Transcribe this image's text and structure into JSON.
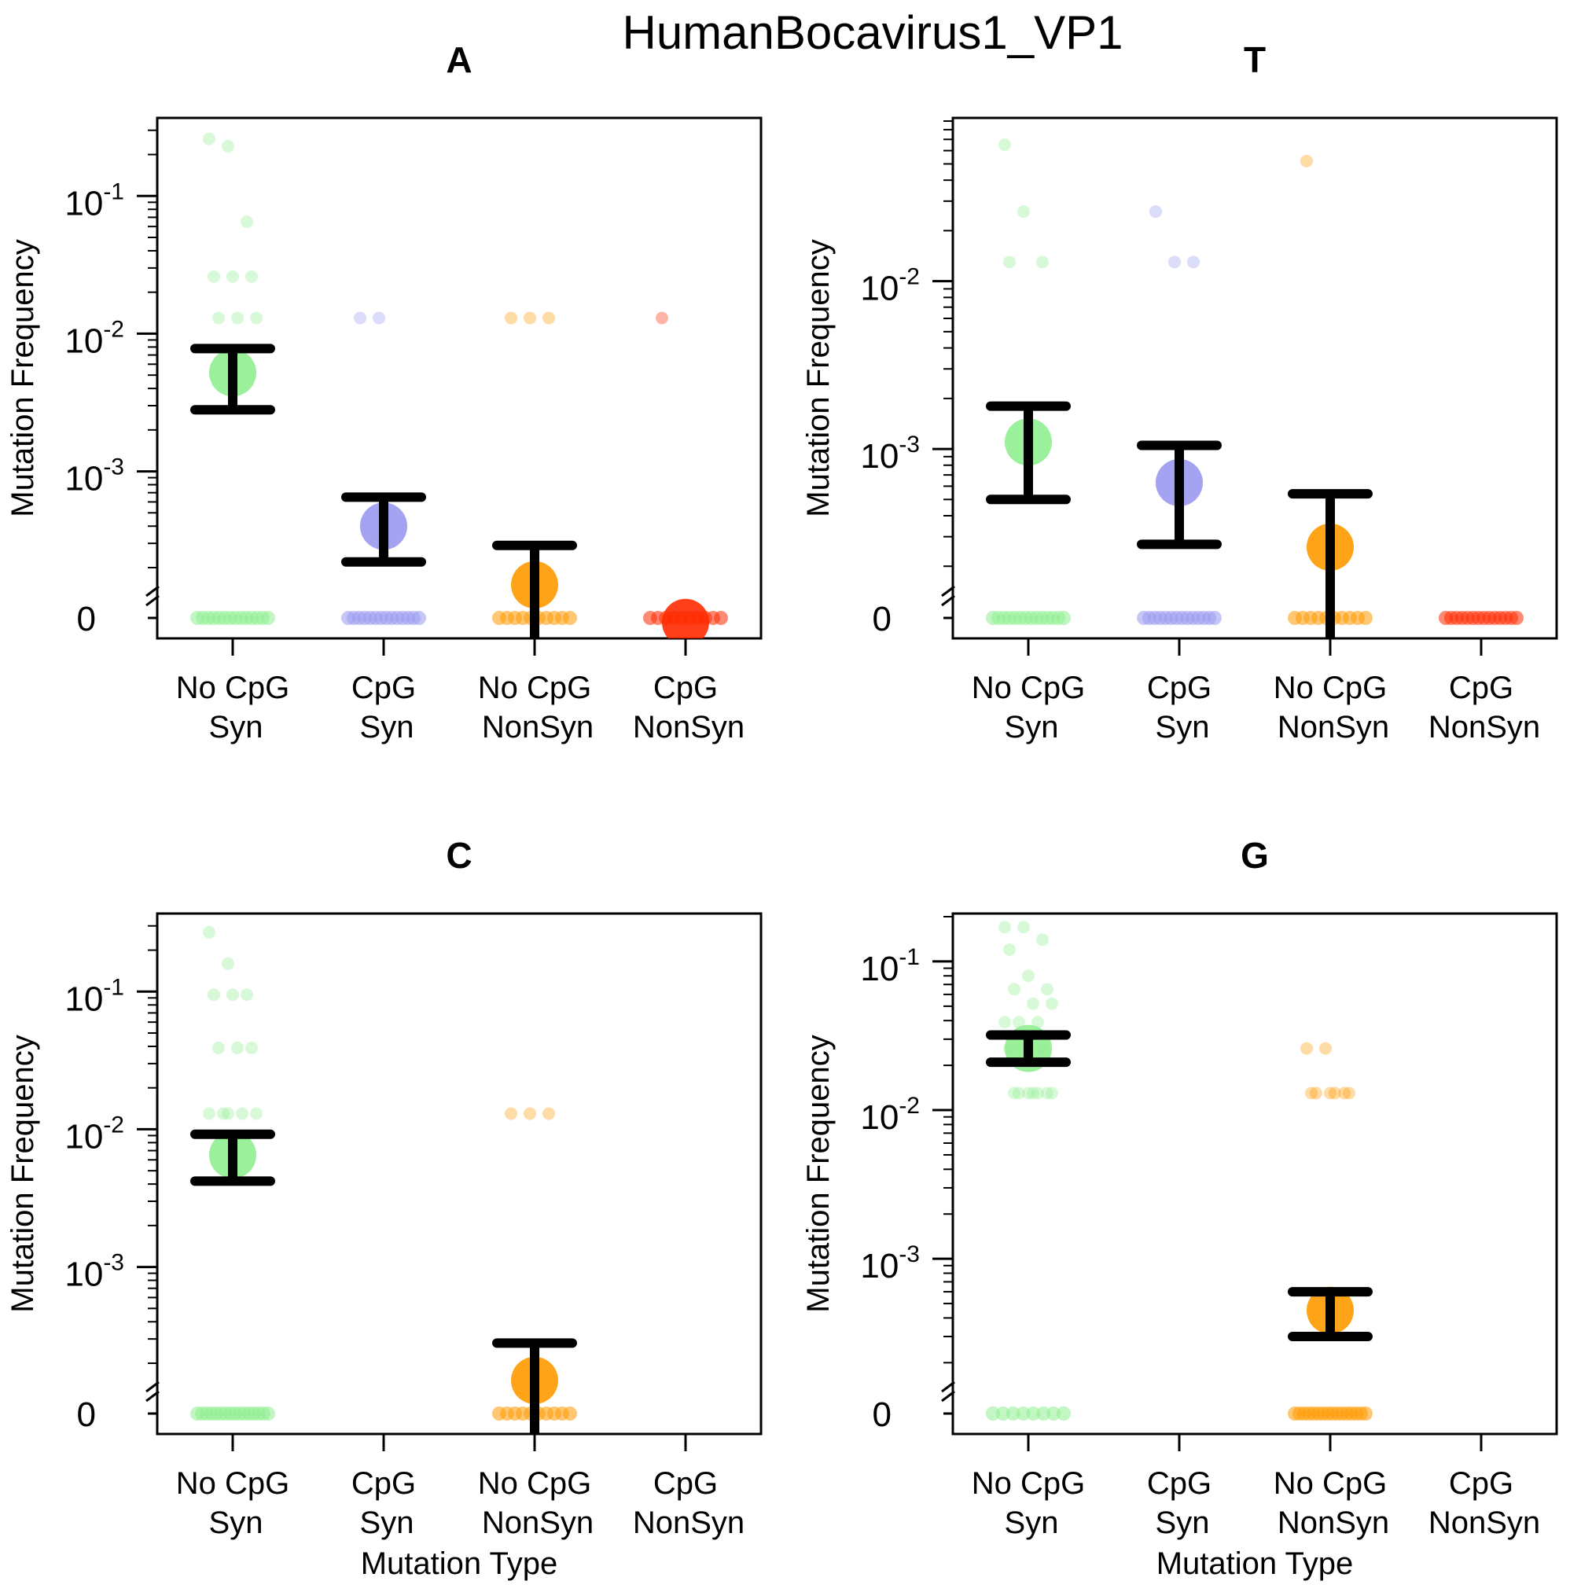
{
  "title": "HumanBocavirus1_VP1",
  "x_axis_label": "Mutation Type",
  "y_axis_label": "Mutation Frequency",
  "categories": [
    {
      "line1": "No CpG",
      "line2": "Syn",
      "color": "#90ee90"
    },
    {
      "line1": "CpG",
      "line2": "Syn",
      "color": "#9999f0"
    },
    {
      "line1": "No CpG",
      "line2": "NonSyn",
      "color": "#ff9900"
    },
    {
      "line1": "CpG",
      "line2": "NonSyn",
      "color": "#ff2a00"
    }
  ],
  "chart_data": [
    {
      "type": "scatter",
      "title": "A",
      "yscale": "log",
      "ylim": [
        0.00018,
        0.35
      ],
      "y_ticks": [
        {
          "value": 0.1,
          "base": "10",
          "exp": "-1"
        },
        {
          "value": 0.01,
          "base": "10",
          "exp": "-2"
        },
        {
          "value": 0.001,
          "base": "10",
          "exp": "-3"
        }
      ],
      "zero_label": "0",
      "xlabel": "",
      "ylabel": "Mutation Frequency",
      "series": [
        {
          "category": 0,
          "points": [
            0.26,
            0.23,
            0.065,
            0.026,
            0.026,
            0.026,
            0.013,
            0.013,
            0.013
          ],
          "zeros": 14,
          "mean": 0.0052,
          "ci": [
            0.0028,
            0.0078
          ]
        },
        {
          "category": 1,
          "points": [
            0.013,
            0.013
          ],
          "zeros": 14,
          "mean": 0.0004,
          "ci": [
            0.00022,
            0.00065
          ]
        },
        {
          "category": 2,
          "points": [
            0.013,
            0.013,
            0.013
          ],
          "zeros": 10,
          "mean": 0.00015,
          "ci": [
            0,
            0.00029
          ]
        },
        {
          "category": 3,
          "points": [
            0.013
          ],
          "zeros": 10,
          "mean": 8e-05,
          "ci": null
        }
      ]
    },
    {
      "type": "scatter",
      "title": "T",
      "yscale": "log",
      "ylim": [
        0.00018,
        0.09
      ],
      "y_ticks": [
        {
          "value": 0.01,
          "base": "10",
          "exp": "-2"
        },
        {
          "value": 0.001,
          "base": "10",
          "exp": "-3"
        }
      ],
      "zero_label": "0",
      "xlabel": "",
      "ylabel": "Mutation Frequency",
      "series": [
        {
          "category": 0,
          "points": [
            0.065,
            0.026,
            0.013,
            0.013
          ],
          "zeros": 14,
          "mean": 0.0011,
          "ci": [
            0.0005,
            0.0018
          ]
        },
        {
          "category": 1,
          "points": [
            0.026,
            0.013,
            0.013
          ],
          "zeros": 14,
          "mean": 0.00063,
          "ci": [
            0.00027,
            0.00105
          ]
        },
        {
          "category": 2,
          "points": [
            0.052
          ],
          "zeros": 10,
          "mean": 0.00026,
          "ci": [
            0,
            0.00054
          ]
        },
        {
          "category": 3,
          "points": [],
          "zeros": 14,
          "mean": null,
          "ci": null
        }
      ]
    },
    {
      "type": "scatter",
      "title": "C",
      "yscale": "log",
      "ylim": [
        0.00018,
        0.35
      ],
      "y_ticks": [
        {
          "value": 0.1,
          "base": "10",
          "exp": "-1"
        },
        {
          "value": 0.01,
          "base": "10",
          "exp": "-2"
        },
        {
          "value": 0.001,
          "base": "10",
          "exp": "-3"
        }
      ],
      "zero_label": "0",
      "xlabel": "Mutation Type",
      "ylabel": "Mutation Frequency",
      "series": [
        {
          "category": 0,
          "points": [
            0.27,
            0.16,
            0.095,
            0.095,
            0.095,
            0.039,
            0.039,
            0.039,
            0.013,
            0.013,
            0.013,
            0.013,
            0.013
          ],
          "zeros": 16,
          "mean": 0.0065,
          "ci": [
            0.0042,
            0.0092
          ]
        },
        {
          "category": 1,
          "points": [],
          "zeros": 0,
          "mean": null,
          "ci": null
        },
        {
          "category": 2,
          "points": [
            0.013,
            0.013,
            0.013
          ],
          "zeros": 10,
          "mean": 0.00015,
          "ci": [
            0,
            0.00028
          ]
        },
        {
          "category": 3,
          "points": [],
          "zeros": 0,
          "mean": null,
          "ci": null
        }
      ]
    },
    {
      "type": "scatter",
      "title": "G",
      "yscale": "log",
      "ylim": [
        0.00018,
        0.2
      ],
      "y_ticks": [
        {
          "value": 0.1,
          "base": "10",
          "exp": "-1"
        },
        {
          "value": 0.01,
          "base": "10",
          "exp": "-2"
        },
        {
          "value": 0.001,
          "base": "10",
          "exp": "-3"
        }
      ],
      "zero_label": "0",
      "xlabel": "Mutation Type",
      "ylabel": "Mutation Frequency",
      "series": [
        {
          "category": 0,
          "points": [
            0.17,
            0.17,
            0.14,
            0.12,
            0.08,
            0.065,
            0.065,
            0.052,
            0.052,
            0.039,
            0.039,
            0.039,
            0.026,
            0.026,
            0.026,
            0.013,
            0.013,
            0.013,
            0.013,
            0.013,
            0.013,
            0.013
          ],
          "zeros": 8,
          "mean": 0.026,
          "ci": [
            0.021,
            0.032
          ]
        },
        {
          "category": 1,
          "points": [],
          "zeros": 0,
          "mean": null,
          "ci": null
        },
        {
          "category": 2,
          "points": [
            0.026,
            0.026,
            0.013,
            0.013,
            0.013,
            0.013,
            0.013,
            0.013
          ],
          "zeros": 16,
          "mean": 0.00045,
          "ci": [
            0.0003,
            0.0006
          ]
        },
        {
          "category": 3,
          "points": [],
          "zeros": 0,
          "mean": null,
          "ci": null
        }
      ]
    }
  ]
}
